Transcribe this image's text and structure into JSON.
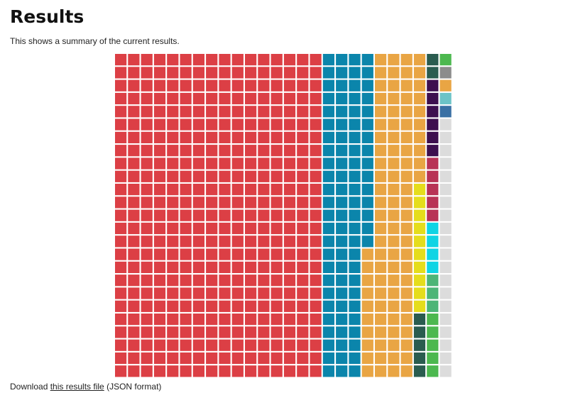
{
  "page": {
    "title": "Results",
    "summary": "This shows a summary of the current results.",
    "download": {
      "prefix": "Download ",
      "link_text": "this results file",
      "suffix": " (JSON format)"
    }
  },
  "chart_data": {
    "type": "waffle",
    "fill_order": "column-major",
    "rows": 25,
    "columns": 26,
    "cell_total": 650,
    "categories": [
      {
        "color": "#dc3f45",
        "value": 400
      },
      {
        "color": "#0b85ab",
        "value": 90
      },
      {
        "color": "#e9a544",
        "value": 95
      },
      {
        "color": "#e5dd1c",
        "value": 10
      },
      {
        "color": "#2a5c4f",
        "value": 7
      },
      {
        "color": "#3d0f4f",
        "value": 6
      },
      {
        "color": "#b83256",
        "value": 5
      },
      {
        "color": "#0fd4e4",
        "value": 4
      },
      {
        "color": "#4db577",
        "value": 3
      },
      {
        "color": "#4cb84f",
        "value": 6
      },
      {
        "color": "#8c8c8c",
        "value": 1
      },
      {
        "color": "#e9a544",
        "value": 1
      },
      {
        "color": "#6cc3c7",
        "value": 1
      },
      {
        "color": "#3a70a4",
        "value": 1
      },
      {
        "color": "#dcdcdc",
        "value": 20
      }
    ]
  }
}
